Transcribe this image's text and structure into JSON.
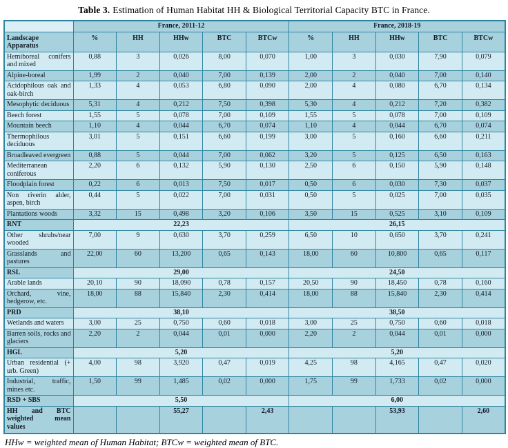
{
  "title": {
    "label": "Table 3.",
    "text": "Estimation of Human Habitat HH & Biological Territorial Capacity BTC in France."
  },
  "footnote": "HHw = weighted mean of Human Habitat; BTCw = weighted mean of BTC.",
  "colors": {
    "border": "#2e84a0",
    "row_light": "#d2eaf2",
    "row_dark": "#a8d1de",
    "header_bg": "#a8d1de",
    "corner_bg": "#d9eef5",
    "text": "#101a24"
  },
  "table": {
    "corner_label": "Landscape Apparatus",
    "groups": [
      "France, 2011-12",
      "France, 2018-19"
    ],
    "columns": [
      "%",
      "HH",
      "HHw",
      "BTC",
      "BTCw",
      "%",
      "HH",
      "HHw",
      "BTC",
      "BTCw"
    ],
    "rows": [
      {
        "type": "data",
        "shade": "light",
        "label": "Hemiboreal conifers and mixed",
        "values": [
          "0,88",
          "3",
          "0,026",
          "8,00",
          "0,070",
          "1,00",
          "3",
          "0,030",
          "7,90",
          "0,079"
        ]
      },
      {
        "type": "data",
        "shade": "dark",
        "label": "Alpine-boreal",
        "values": [
          "1,99",
          "2",
          "0,040",
          "7,00",
          "0,139",
          "2,00",
          "2",
          "0,040",
          "7,00",
          "0,140"
        ]
      },
      {
        "type": "data",
        "shade": "light",
        "label": "Acidophilous oak and oak-birch",
        "values": [
          "1,33",
          "4",
          "0,053",
          "6,80",
          "0,090",
          "2,00",
          "4",
          "0,080",
          "6,70",
          "0,134"
        ]
      },
      {
        "type": "data",
        "shade": "dark",
        "label": "Mesophytic deciduous",
        "values": [
          "5,31",
          "4",
          "0,212",
          "7,50",
          "0,398",
          "5,30",
          "4",
          "0,212",
          "7,20",
          "0,382"
        ]
      },
      {
        "type": "data",
        "shade": "light",
        "label": "Beech forest",
        "values": [
          "1,55",
          "5",
          "0,078",
          "7,00",
          "0,109",
          "1,55",
          "5",
          "0,078",
          "7,00",
          "0,109"
        ]
      },
      {
        "type": "data",
        "shade": "dark",
        "label": "Mountain beech",
        "values": [
          "1,10",
          "4",
          "0,044",
          "6,70",
          "0,074",
          "1,10",
          "4",
          "0,044",
          "6,70",
          "0,074"
        ]
      },
      {
        "type": "data",
        "shade": "light",
        "label": "Thermophilous deciduous",
        "values": [
          "3,01",
          "5",
          "0,151",
          "6,60",
          "0,199",
          "3,00",
          "5",
          "0,160",
          "6,60",
          "0,211"
        ]
      },
      {
        "type": "data",
        "shade": "dark",
        "label": "Broadleaved evergreen",
        "values": [
          "0,88",
          "5",
          "0,044",
          "7,00",
          "0,062",
          "3,20",
          "5",
          "0,125",
          "6,50",
          "0,163"
        ]
      },
      {
        "type": "data",
        "shade": "light",
        "label": "Mediterranean coniferous",
        "values": [
          "2,20",
          "6",
          "0,132",
          "5,90",
          "0,130",
          "2,50",
          "6",
          "0,150",
          "5,90",
          "0,148"
        ]
      },
      {
        "type": "data",
        "shade": "dark",
        "label": "Floodplain forest",
        "values": [
          "0,22",
          "6",
          "0,013",
          "7,50",
          "0,017",
          "0,50",
          "6",
          "0,030",
          "7,30",
          "0,037"
        ]
      },
      {
        "type": "data",
        "shade": "light",
        "label": "Non riverin alder, aspen, birch",
        "values": [
          "0,44",
          "5",
          "0,022",
          "7,00",
          "0,031",
          "0,50",
          "5",
          "0,025",
          "7,00",
          "0,035"
        ]
      },
      {
        "type": "data",
        "shade": "dark",
        "label": "Plantations woods",
        "values": [
          "3,32",
          "15",
          "0,498",
          "3,20",
          "0,106",
          "3,50",
          "15",
          "0,525",
          "3,10",
          "0,109"
        ]
      },
      {
        "type": "summary",
        "label": "RNT",
        "left": "22,23",
        "right": "26,15"
      },
      {
        "type": "data",
        "shade": "light",
        "label": "Other shrubs/near wooded",
        "values": [
          "7,00",
          "9",
          "0,630",
          "3,70",
          "0,259",
          "6,50",
          "10",
          "0,650",
          "3,70",
          "0,241"
        ]
      },
      {
        "type": "data",
        "shade": "dark",
        "label": "Grasslands and pastures",
        "values": [
          "22,00",
          "60",
          "13,200",
          "0,65",
          "0,143",
          "18,00",
          "60",
          "10,800",
          "0,65",
          "0,117"
        ]
      },
      {
        "type": "summary",
        "label": "RSL",
        "left": "29,00",
        "right": "24,50"
      },
      {
        "type": "data",
        "shade": "light",
        "label": "Arable lands",
        "values": [
          "20,10",
          "90",
          "18,090",
          "0,78",
          "0,157",
          "20,50",
          "90",
          "18,450",
          "0,78",
          "0,160"
        ]
      },
      {
        "type": "data",
        "shade": "dark",
        "label": "Orchard, vine, hedgerow, etc.",
        "values": [
          "18,00",
          "88",
          "15,840",
          "2,30",
          "0,414",
          "18,00",
          "88",
          "15,840",
          "2,30",
          "0,414"
        ]
      },
      {
        "type": "summary",
        "label": "PRD",
        "left": "38,10",
        "right": "38,50"
      },
      {
        "type": "data",
        "shade": "light",
        "label": "Wetlands and waters",
        "values": [
          "3,00",
          "25",
          "0,750",
          "0,60",
          "0,018",
          "3,00",
          "25",
          "0,750",
          "0,60",
          "0,018"
        ]
      },
      {
        "type": "data",
        "shade": "dark",
        "label": "Barren soils, rocks and glaciers",
        "values": [
          "2,20",
          "2",
          "0,044",
          "0,01",
          "0,000",
          "2,20",
          "2",
          "0,044",
          "0,01",
          "0,000"
        ]
      },
      {
        "type": "summary",
        "label": "HGL",
        "left": "5,20",
        "right": "5,20"
      },
      {
        "type": "data",
        "shade": "light",
        "label": "Urban residential (+ urb. Green)",
        "values": [
          "4,00",
          "98",
          "3,920",
          "0,47",
          "0,019",
          "4,25",
          "98",
          "4,165",
          "0,47",
          "0,020"
        ]
      },
      {
        "type": "data",
        "shade": "dark",
        "label": "Industrial, traffic, mines etc.",
        "values": [
          "1,50",
          "99",
          "1,485",
          "0,02",
          "0,000",
          "1,75",
          "99",
          "1,733",
          "0,02",
          "0,000"
        ]
      },
      {
        "type": "summary",
        "label": "RSD + SBS",
        "left": "5,50",
        "right": "6,00"
      },
      {
        "type": "total",
        "shade": "dark",
        "label": "HH and BTC weighted mean values",
        "values": [
          "",
          "",
          "55,27",
          "",
          "2,43",
          "",
          "",
          "53,93",
          "",
          "2,60"
        ]
      }
    ]
  }
}
